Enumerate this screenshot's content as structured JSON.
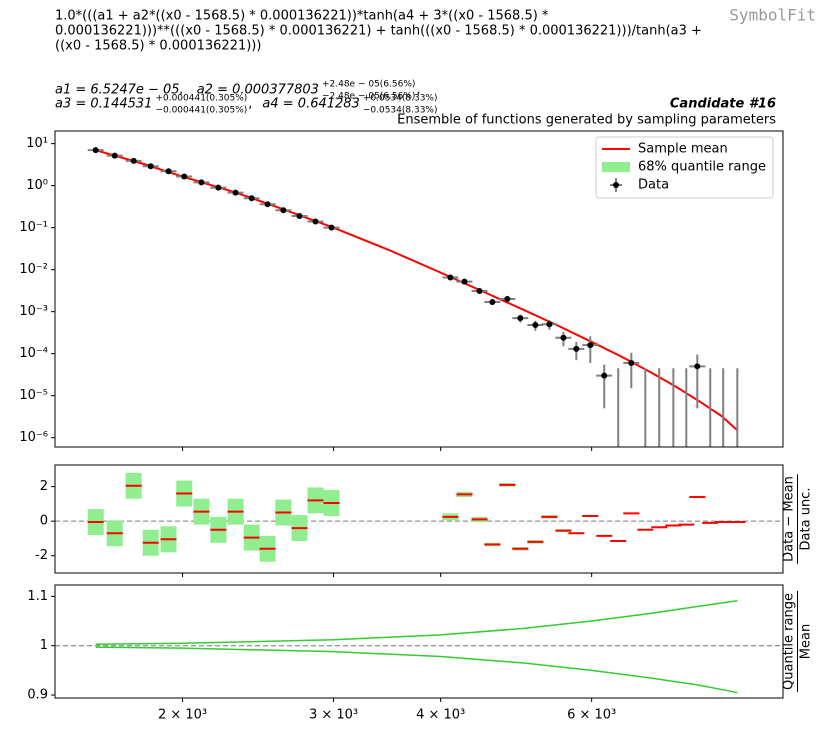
{
  "header": {
    "formula": [
      "1.0*(((a1 + a2*((x0 - 1568.5) * 0.000136221))*tanh(a4 + 3*((x0 - 1568.5) *",
      "0.000136221)))**(((x0 - 1568.5) * 0.000136221) + tanh(((x0 - 1568.5) * 0.000136221)))/tanh(a3 +",
      "((x0 - 1568.5) * 0.000136221)))"
    ],
    "parameters": [
      [
        {
          "text": "a1 = 6.5247e − 05,"
        },
        {
          "text": "a2 = 0.000377803",
          "plus": "+2.48e − 05(6.56%)",
          "minus": "−2.48e − 05(6.56%)",
          "suffix": ","
        }
      ],
      [
        {
          "text": "a3 = 0.144531",
          "plus": "+0.000441(0.305%)",
          "minus": "−0.000441(0.305%)",
          "suffix": ","
        },
        {
          "text": "a4 = 0.641283",
          "plus": "+0.0534(8.33%)",
          "minus": "−0.0534(8.33%)"
        }
      ]
    ],
    "watermark": "SymbolFit",
    "candidate": "Candidate #16",
    "subtitle": "Ensemble of functions generated by sampling parameters"
  },
  "xaxis": {
    "scale": "log",
    "xlim": [
      1420,
      10030
    ],
    "xticks": [
      {
        "value": 2000,
        "label": "2 × 10³"
      },
      {
        "value": 3000,
        "label": "3 × 10³"
      },
      {
        "value": 4000,
        "label": "4 × 10³"
      },
      {
        "value": 6000,
        "label": "6 × 10³"
      }
    ]
  },
  "chart_data": [
    {
      "type": "scatter",
      "yscale": "log",
      "ylim": [
        6e-07,
        20
      ],
      "yticks": [
        {
          "value": 10,
          "label": "10¹"
        },
        {
          "value": 1,
          "label": "10⁰"
        },
        {
          "value": 0.1,
          "label": "10⁻¹"
        },
        {
          "value": 0.01,
          "label": "10⁻²"
        },
        {
          "value": 0.001,
          "label": "10⁻³"
        },
        {
          "value": 0.0001,
          "label": "10⁻⁴"
        },
        {
          "value": 1e-05,
          "label": "10⁻⁵"
        },
        {
          "value": 1e-06,
          "label": "10⁻⁶"
        }
      ],
      "legend": "upper right",
      "series": [
        {
          "name": "Sample mean",
          "color": "#ff0000",
          "x": [
            1584,
            1800,
            2000,
            2300,
            2600,
            3000,
            3500,
            4000,
            4500,
            5000,
            5500,
            6000,
            6500,
            7000,
            7500,
            8000,
            8500,
            8872
          ],
          "values": [
            7.0,
            3.3,
            1.65,
            0.7,
            0.29,
            0.1,
            0.028,
            0.0085,
            0.0029,
            0.0011,
            0.00045,
            0.00019,
            8.5e-05,
            3.8e-05,
            1.7e-05,
            7.5e-06,
            3.3e-06,
            1.5e-06
          ]
        },
        {
          "name": "68% quantile range",
          "color": "#90ee90"
        },
        {
          "name": "Data",
          "color": "#000000",
          "x": [
            1584,
            1667,
            1754,
            1836,
            1926,
            2009,
            2104,
            2202,
            2306,
            2408,
            2513,
            2622,
            2738,
            2858,
            2984,
            4106,
            4264,
            4440,
            4596,
            4784,
            4954,
            5158,
            5356,
            5562,
            5758,
            5978,
            6206,
            6444,
            6674,
            6930,
            7194,
            7472,
            7736,
            7968,
            8250,
            8542,
            8872
          ],
          "values": [
            7,
            5.2,
            3.9,
            2.9,
            2.2,
            1.65,
            1.2,
            0.9,
            0.68,
            0.5,
            0.36,
            0.26,
            0.19,
            0.14,
            0.1,
            0.0065,
            0.0052,
            0.0031,
            0.0017,
            0.002,
            0.0007,
            0.00048,
            0.0005,
            0.00024,
            0.00013,
            0.00016,
            3e-05,
            0,
            6e-05,
            0,
            0,
            0,
            0,
            5e-05,
            0,
            0,
            0
          ],
          "errors": [
            0.5,
            0.35,
            0.25,
            0.2,
            0.15,
            0.1,
            0.08,
            0.06,
            0.05,
            0.035,
            0.025,
            0.018,
            0.013,
            0.01,
            0.007,
            0.0005,
            0.00045,
            0.00035,
            0.00025,
            0.00028,
            0.00015,
            0.00013,
            0.00013,
            9e-05,
            6e-05,
            0.0001,
            2.5e-05,
            4.5e-05,
            4.5e-05,
            4.5e-05,
            4.5e-05,
            4.5e-05,
            4.5e-05,
            4.5e-05,
            4.5e-05,
            4.5e-05,
            4.5e-05
          ]
        }
      ]
    },
    {
      "type": "residual",
      "ylim": [
        -3,
        3.25
      ],
      "yticks": [
        -2,
        0,
        2
      ],
      "hline": 0,
      "ylabel": [
        "Data − Mean",
        "Data unc."
      ],
      "color": "#ff0000",
      "band_color": "#90ee90",
      "values": [
        -0.05,
        -0.7,
        2.05,
        -1.25,
        -1.05,
        1.6,
        0.55,
        -0.5,
        0.55,
        -0.95,
        -1.6,
        0.5,
        -0.4,
        1.2,
        1.05,
        0.25,
        1.55,
        0.1,
        -1.35,
        2.1,
        -1.6,
        -1.2,
        0.25,
        -0.55,
        -0.7,
        0.3,
        -0.85,
        -1.15,
        0.45,
        -0.5,
        -0.35,
        -0.25,
        -0.2,
        1.4,
        -0.1,
        -0.05,
        -0.05
      ],
      "spread": [
        0.75,
        0.75,
        0.75,
        0.75,
        0.75,
        0.75,
        0.75,
        0.75,
        0.75,
        0.75,
        0.75,
        0.75,
        0.75,
        0.75,
        0.75,
        0.2,
        0.15,
        0.15,
        0.1,
        0.1,
        0.1,
        0.1,
        0.1,
        0.08,
        0.05,
        0.04,
        0.03,
        0.03,
        0.03,
        0.02,
        0.02,
        0.02,
        0.02,
        0.02,
        0.02,
        0.02,
        0.02
      ]
    },
    {
      "type": "ratio",
      "ylim": [
        0.894,
        1.123
      ],
      "yticks": [
        0.9,
        1,
        1.1
      ],
      "hline": 1,
      "ylabel": [
        "Quantile range",
        "Mean"
      ],
      "color": "#33cc33",
      "x": [
        1584,
        2000,
        3000,
        4000,
        5000,
        6000,
        7000,
        8000,
        8872
      ],
      "upper": [
        1.003,
        1.005,
        1.012,
        1.022,
        1.035,
        1.05,
        1.065,
        1.08,
        1.091
      ],
      "lower": [
        0.997,
        0.995,
        0.988,
        0.978,
        0.965,
        0.95,
        0.935,
        0.92,
        0.905
      ]
    }
  ]
}
